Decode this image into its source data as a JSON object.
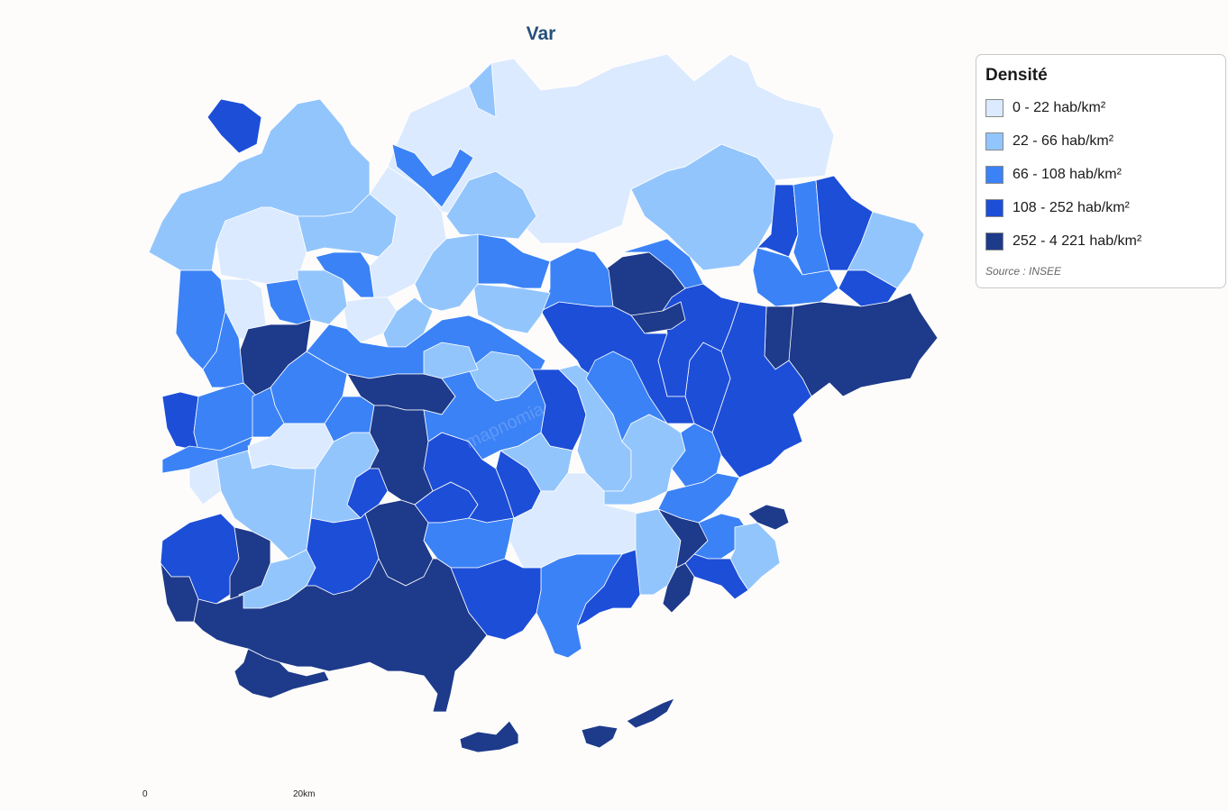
{
  "title": "Var",
  "legend": {
    "title": "Densité",
    "classes": [
      {
        "label": "0 - 22 hab/km²",
        "color": "#dbeafe"
      },
      {
        "label": "22 - 66 hab/km²",
        "color": "#93c5fd"
      },
      {
        "label": "66 - 108 hab/km²",
        "color": "#3b82f6"
      },
      {
        "label": "108 - 252 hab/km²",
        "color": "#1d4ed8"
      },
      {
        "label": "252 - 4 221 hab/km²",
        "color": "#1e3a8a"
      }
    ],
    "source": "Source : INSEE"
  },
  "scale": {
    "start_label": "0",
    "end_label": "20km"
  },
  "watermark": "mapnomia"
}
